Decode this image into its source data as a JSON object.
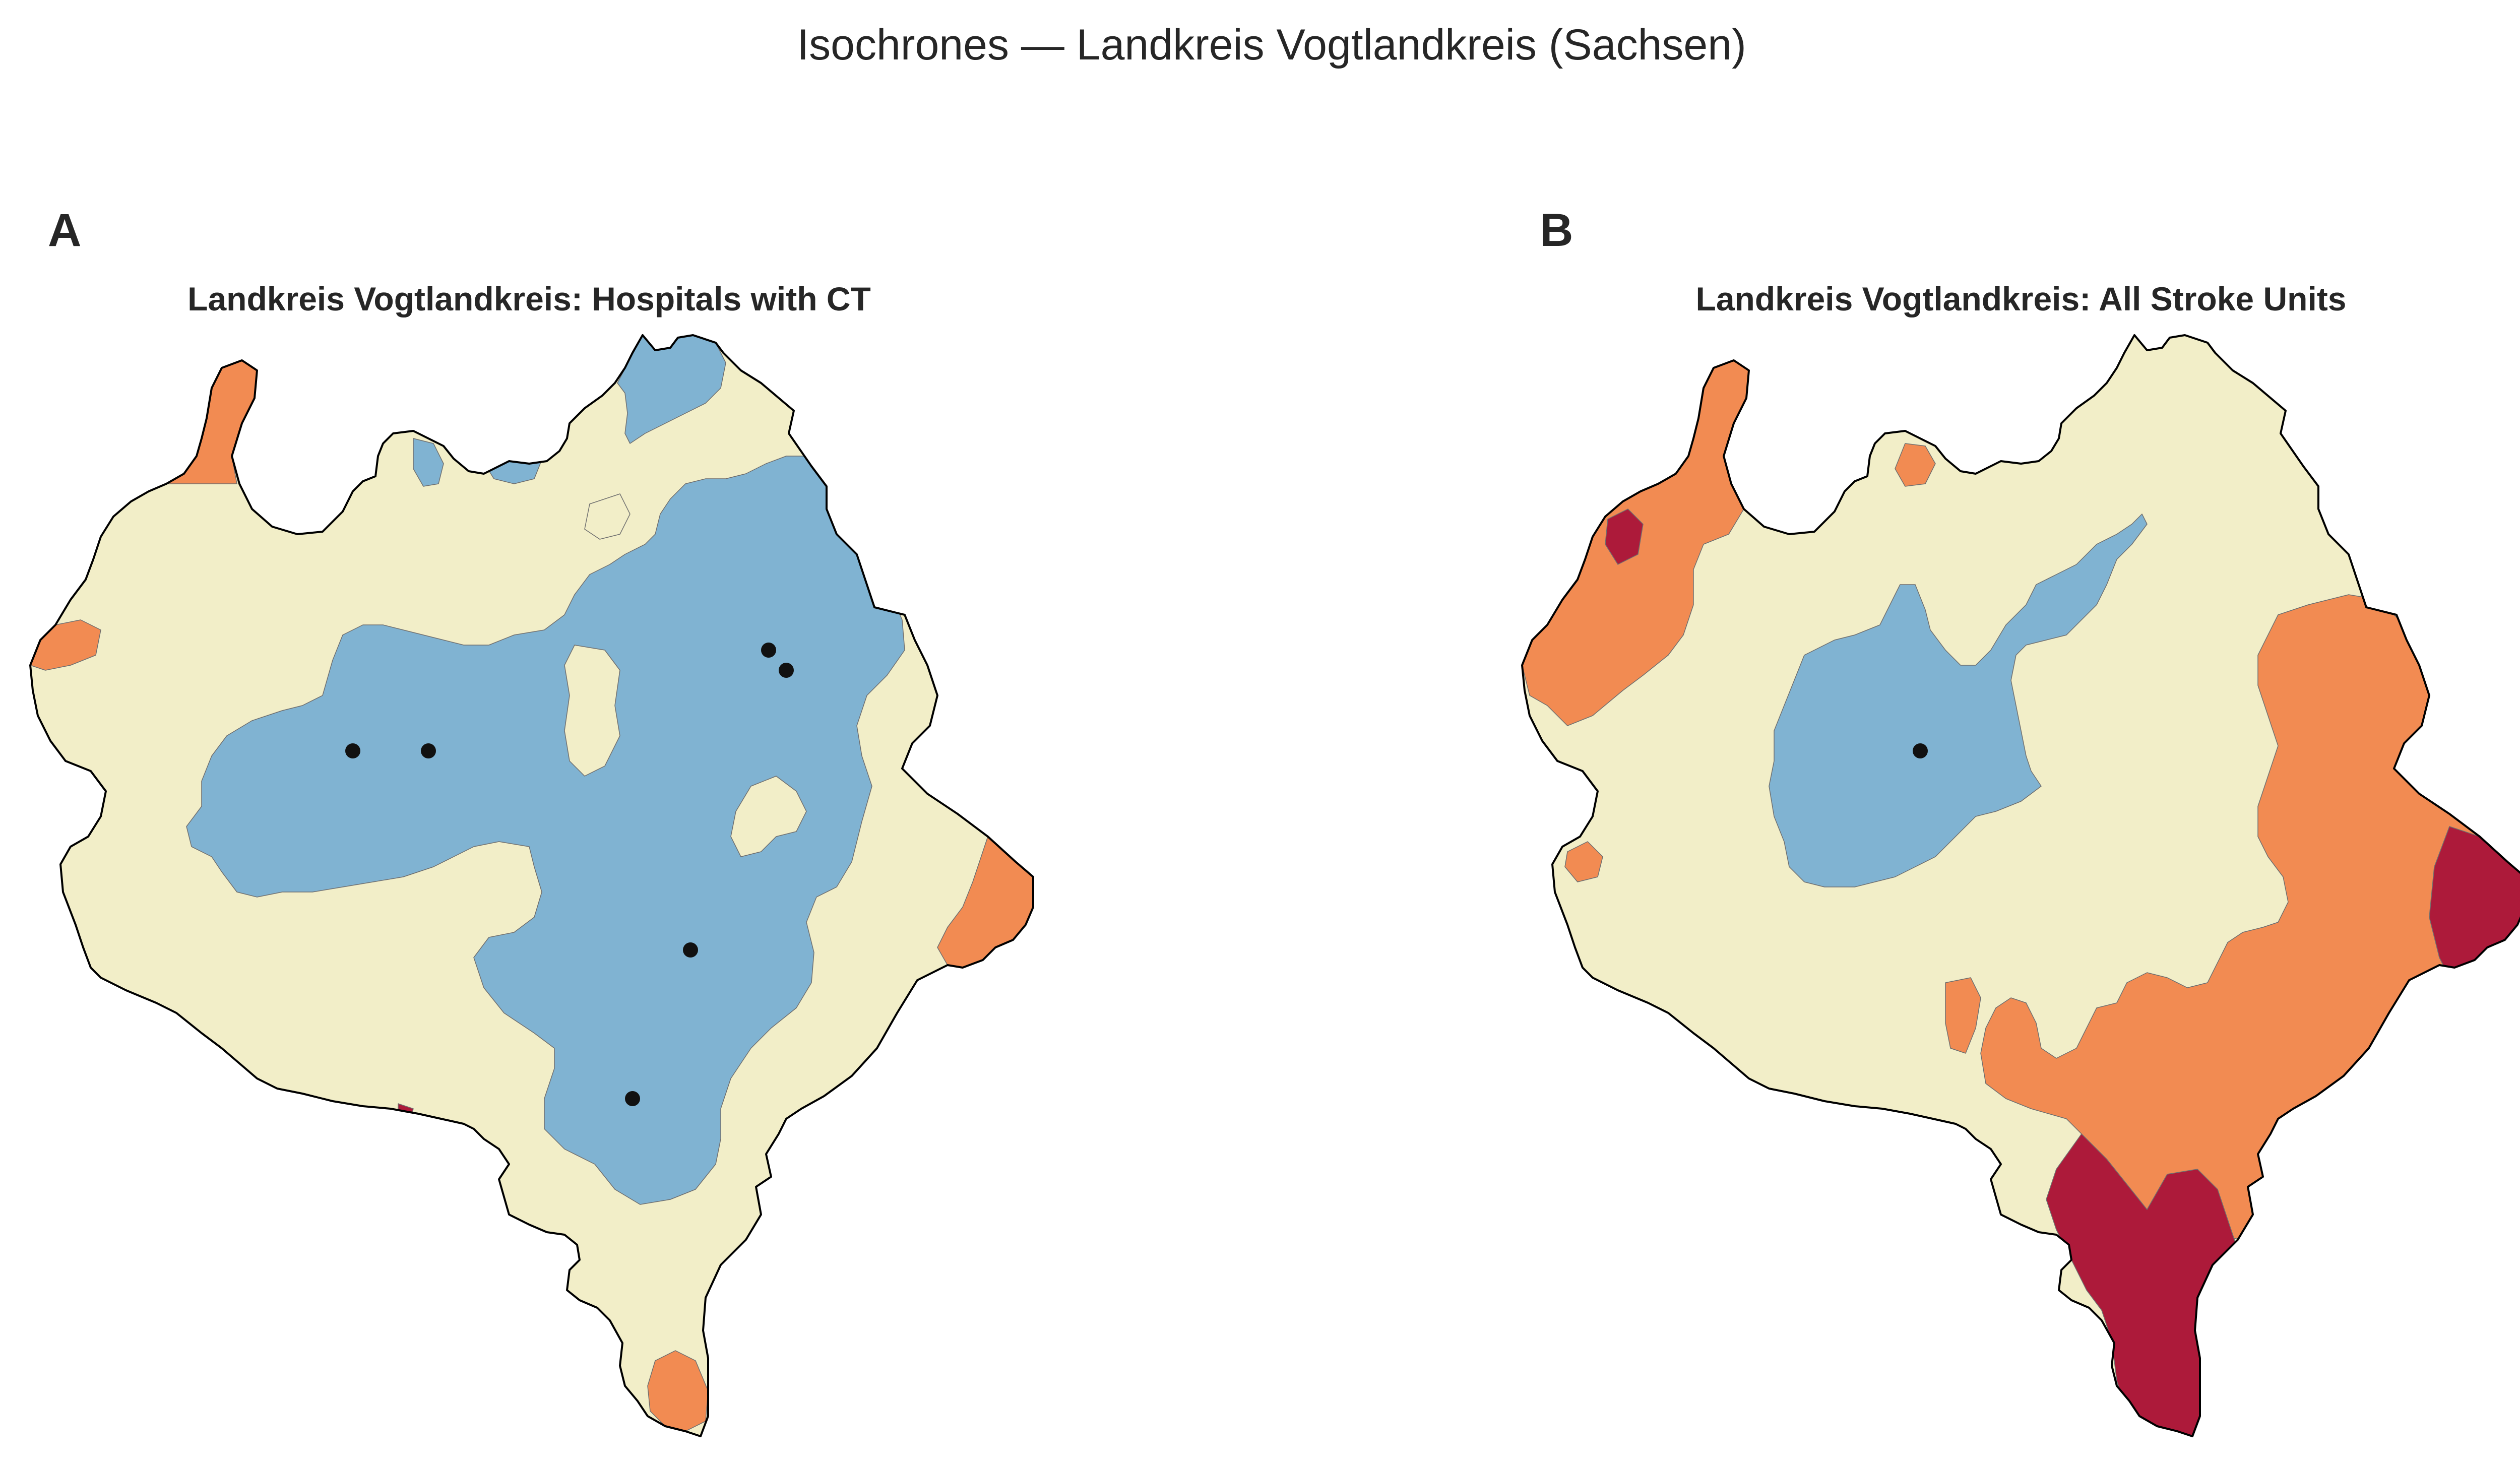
{
  "figure_title": "Isochrones — Landkreis Vogtlandkreis (Sachsen)",
  "colors": {
    "zone_fast": "#80b3d2",
    "zone_mid": "#f2eec8",
    "zone_slow": "#f28b52",
    "zone_slowest": "#ad1a3a",
    "boundary": "#000000",
    "facility_marker": "#111111"
  },
  "panels": [
    {
      "letter": "A",
      "title": "Landkreis Vogtlandkreis: Hospitals with CT",
      "facilities": 6
    },
    {
      "letter": "B",
      "title": "Landkreis Vogtlandkreis: All Stroke Units",
      "facilities": 1
    }
  ]
}
